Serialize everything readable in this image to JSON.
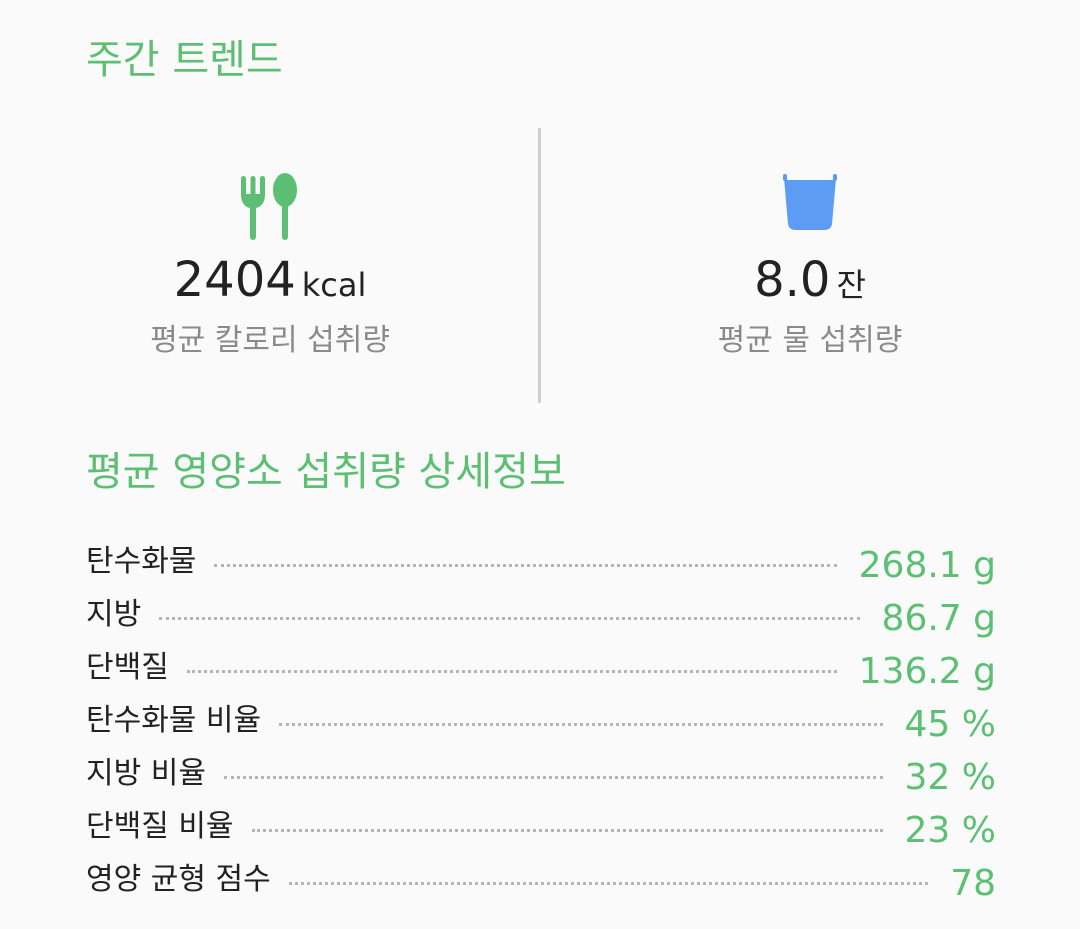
{
  "colors": {
    "accent": "#5cbf74",
    "water": "#5d9cf4"
  },
  "weekly": {
    "title": "주간 트렌드",
    "calorie": {
      "icon": "fork-spoon-icon",
      "value": "2404",
      "unit": "kcal",
      "label": "평균 칼로리 섭취량"
    },
    "water": {
      "icon": "water-cup-icon",
      "value": "8.0",
      "unit": "잔",
      "label": "평균 물 섭취량"
    }
  },
  "details": {
    "title": "평균 영양소 섭취량 상세정보",
    "rows": [
      {
        "label": "탄수화물",
        "value": "268.1 g"
      },
      {
        "label": "지방",
        "value": "86.7 g"
      },
      {
        "label": "단백질",
        "value": "136.2 g"
      },
      {
        "label": "탄수화물 비율",
        "value": "45 %"
      },
      {
        "label": "지방 비율",
        "value": "32 %"
      },
      {
        "label": "단백질 비율",
        "value": "23 %"
      },
      {
        "label": "영양 균형 점수",
        "value": "78"
      }
    ]
  }
}
